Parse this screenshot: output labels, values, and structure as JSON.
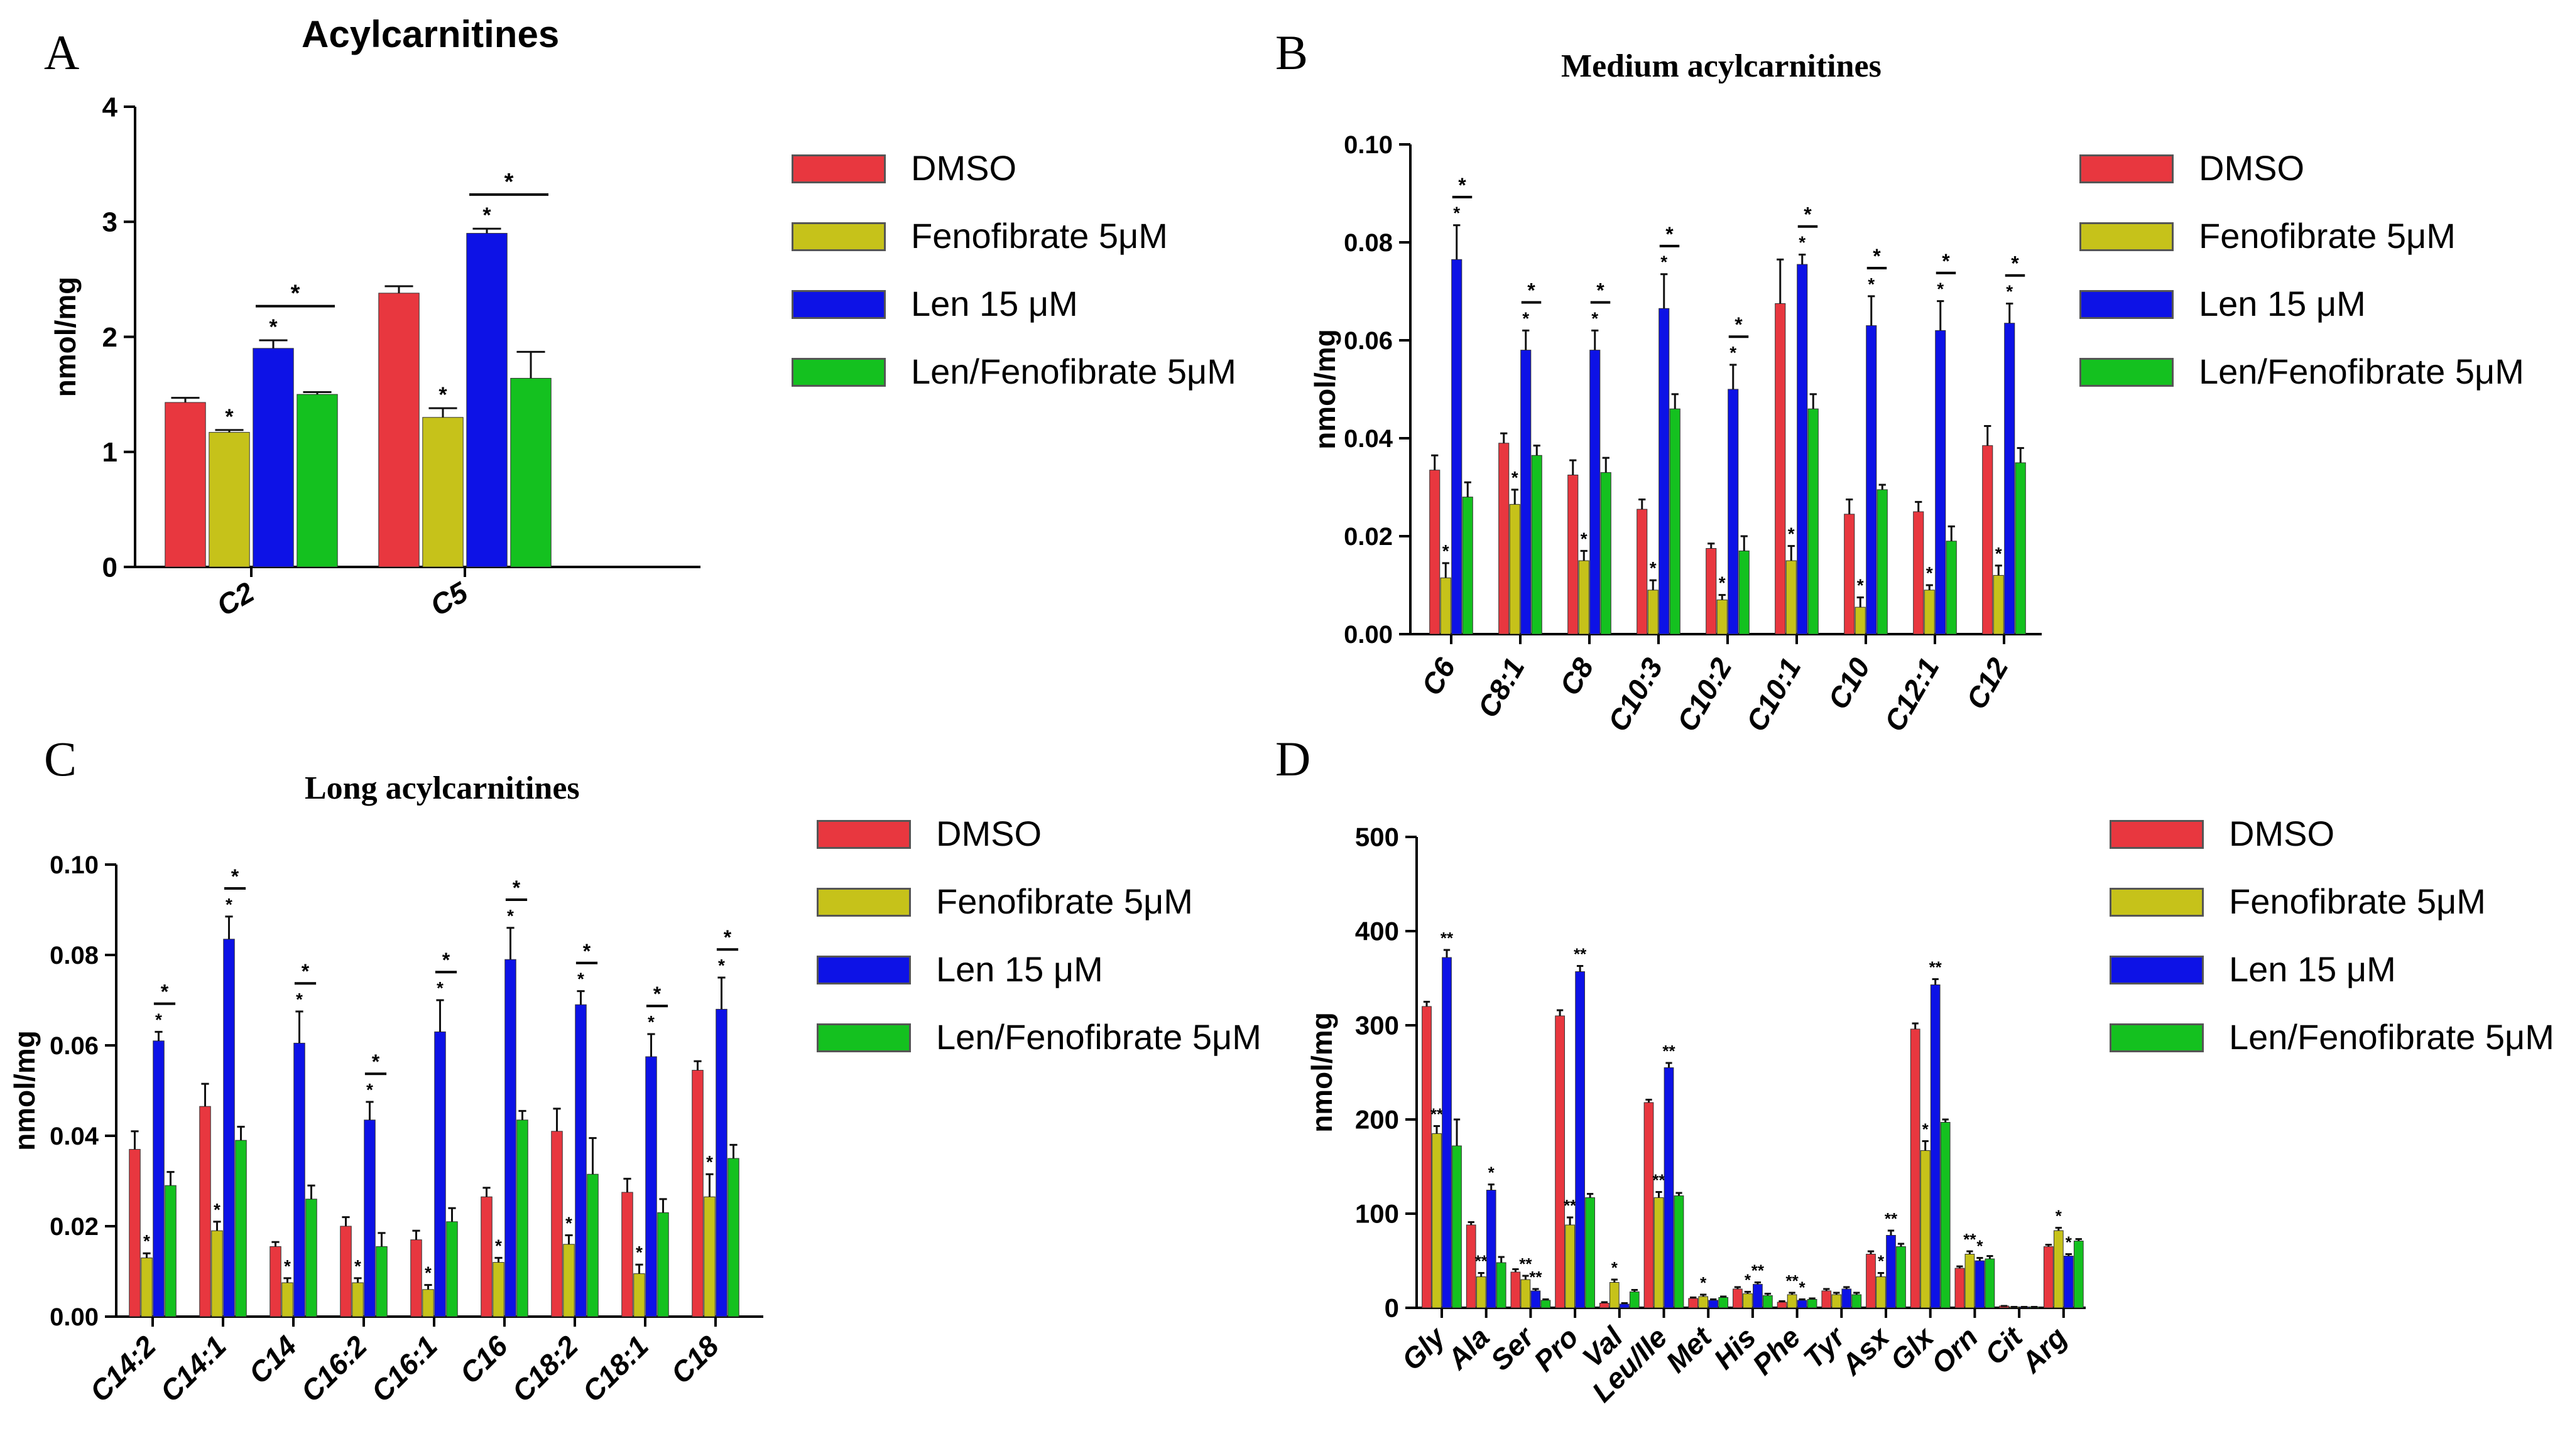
{
  "chart_data": [
    {
      "panel": "A",
      "type": "bar",
      "title": "Acylcarnitines",
      "ylabel": "nmol/mg",
      "xlabel": "",
      "ylim": [
        0,
        4
      ],
      "yticks": [
        "0",
        "1",
        "2",
        "3",
        "4"
      ],
      "categories": [
        "C2",
        "C5"
      ],
      "series": [
        {
          "name": "DMSO",
          "color": "#e8373f",
          "values": [
            1.43,
            2.38
          ],
          "errors": [
            0.04,
            0.06
          ],
          "marks": [
            "",
            ""
          ]
        },
        {
          "name": "Fenofibrate 5μM",
          "color": "#c6c21a",
          "values": [
            1.17,
            1.3
          ],
          "errors": [
            0.02,
            0.08
          ],
          "marks": [
            "*",
            "*"
          ]
        },
        {
          "name": "Len 15 μM",
          "color": "#0d12e6",
          "values": [
            1.9,
            2.9
          ],
          "errors": [
            0.07,
            0.04
          ],
          "marks": [
            "*",
            "*"
          ]
        },
        {
          "name": "Len/Fenofibrate 5μM",
          "color": "#14c11f",
          "values": [
            1.5,
            1.64
          ],
          "errors": [
            0.02,
            0.23
          ],
          "marks": [
            "",
            ""
          ]
        }
      ],
      "brackets": [
        {
          "category": 0,
          "from": 2,
          "to": 3,
          "label": "*"
        },
        {
          "category": 1,
          "from": 2,
          "to": 3,
          "label": "*"
        }
      ]
    },
    {
      "panel": "B",
      "type": "bar",
      "title": "Medium acylcarnitines",
      "ylabel": "nmol/mg",
      "xlabel": "",
      "ylim": [
        0,
        0.1
      ],
      "yticks": [
        "0.00",
        "0.02",
        "0.04",
        "0.06",
        "0.08",
        "0.10"
      ],
      "categories": [
        "C6",
        "C8:1",
        "C8",
        "C10:3",
        "C10:2",
        "C10:1",
        "C10",
        "C12:1",
        "C12"
      ],
      "series": [
        {
          "name": "DMSO",
          "color": "#e8373f",
          "values": [
            0.0335,
            0.039,
            0.0325,
            0.0255,
            0.0175,
            0.0675,
            0.0245,
            0.025,
            0.0385
          ],
          "errors": [
            0.003,
            0.002,
            0.003,
            0.002,
            0.001,
            0.009,
            0.003,
            0.002,
            0.004
          ],
          "marks": [
            "",
            "",
            "",
            "",
            "",
            "",
            "",
            "",
            ""
          ]
        },
        {
          "name": "Fenofibrate 5μM",
          "color": "#c6c21a",
          "values": [
            0.0115,
            0.0265,
            0.015,
            0.009,
            0.007,
            0.015,
            0.0055,
            0.009,
            0.012
          ],
          "errors": [
            0.003,
            0.003,
            0.002,
            0.002,
            0.001,
            0.003,
            0.002,
            0.001,
            0.002
          ],
          "marks": [
            "*",
            "*",
            "*",
            "*",
            "*",
            "*",
            "*",
            "*",
            "*"
          ]
        },
        {
          "name": "Len 15 μM",
          "color": "#0d12e6",
          "values": [
            0.0765,
            0.058,
            0.058,
            0.0665,
            0.05,
            0.0755,
            0.063,
            0.062,
            0.0635
          ],
          "errors": [
            0.007,
            0.004,
            0.004,
            0.007,
            0.005,
            0.002,
            0.006,
            0.006,
            0.004
          ],
          "marks": [
            "*",
            "*",
            "*",
            "*",
            "*",
            "*",
            "*",
            "*",
            "*"
          ]
        },
        {
          "name": "Len/Fenofibrate 5μM",
          "color": "#14c11f",
          "values": [
            0.028,
            0.0365,
            0.033,
            0.046,
            0.017,
            0.046,
            0.0295,
            0.019,
            0.035
          ],
          "errors": [
            0.003,
            0.002,
            0.003,
            0.003,
            0.003,
            0.003,
            0.001,
            0.003,
            0.003
          ],
          "marks": [
            "",
            "",
            "",
            "",
            "",
            "",
            "",
            "",
            ""
          ]
        }
      ],
      "brackets": [
        {
          "category": 0,
          "from": 2,
          "to": 3,
          "label": "*"
        },
        {
          "category": 1,
          "from": 2,
          "to": 3,
          "label": "*"
        },
        {
          "category": 2,
          "from": 2,
          "to": 3,
          "label": "*"
        },
        {
          "category": 3,
          "from": 2,
          "to": 3,
          "label": "*"
        },
        {
          "category": 4,
          "from": 2,
          "to": 3,
          "label": "*"
        },
        {
          "category": 5,
          "from": 2,
          "to": 3,
          "label": "*"
        },
        {
          "category": 6,
          "from": 2,
          "to": 3,
          "label": "*"
        },
        {
          "category": 7,
          "from": 2,
          "to": 3,
          "label": "*"
        },
        {
          "category": 8,
          "from": 2,
          "to": 3,
          "label": "*"
        }
      ]
    },
    {
      "panel": "C",
      "type": "bar",
      "title": "Long acylcarnitines",
      "ylabel": "nmol/mg",
      "xlabel": "",
      "ylim": [
        0,
        0.1
      ],
      "yticks": [
        "0.00",
        "0.02",
        "0.04",
        "0.06",
        "0.08",
        "0.10"
      ],
      "categories": [
        "C14:2",
        "C14:1",
        "C14",
        "C16:2",
        "C16:1",
        "C16",
        "C18:2",
        "C18:1",
        "C18"
      ],
      "series": [
        {
          "name": "DMSO",
          "color": "#e8373f",
          "values": [
            0.037,
            0.0465,
            0.0155,
            0.02,
            0.017,
            0.0265,
            0.041,
            0.0275,
            0.0545
          ],
          "errors": [
            0.004,
            0.005,
            0.001,
            0.002,
            0.002,
            0.002,
            0.005,
            0.003,
            0.002
          ],
          "marks": [
            "",
            "",
            "",
            "",
            "",
            "",
            "",
            "",
            ""
          ]
        },
        {
          "name": "Fenofibrate 5μM",
          "color": "#c6c21a",
          "values": [
            0.013,
            0.019,
            0.0075,
            0.0075,
            0.006,
            0.012,
            0.016,
            0.0095,
            0.0265
          ],
          "errors": [
            0.001,
            0.002,
            0.001,
            0.001,
            0.001,
            0.001,
            0.002,
            0.002,
            0.005
          ],
          "marks": [
            "*",
            "*",
            "*",
            "*",
            "*",
            "*",
            "*",
            "*",
            "*"
          ]
        },
        {
          "name": "Len 15 μM",
          "color": "#0d12e6",
          "values": [
            0.061,
            0.0835,
            0.0605,
            0.0435,
            0.063,
            0.079,
            0.069,
            0.0575,
            0.068
          ],
          "errors": [
            0.002,
            0.005,
            0.007,
            0.004,
            0.007,
            0.007,
            0.003,
            0.005,
            0.007
          ],
          "marks": [
            "*",
            "*",
            "*",
            "*",
            "*",
            "*",
            "*",
            "*",
            "*"
          ]
        },
        {
          "name": "Len/Fenofibrate 5μM",
          "color": "#14c11f",
          "values": [
            0.029,
            0.039,
            0.026,
            0.0155,
            0.021,
            0.0435,
            0.0315,
            0.023,
            0.035
          ],
          "errors": [
            0.003,
            0.003,
            0.003,
            0.003,
            0.003,
            0.002,
            0.008,
            0.003,
            0.003
          ],
          "marks": [
            "",
            "",
            "",
            "",
            "",
            "",
            "",
            "",
            ""
          ]
        }
      ],
      "brackets": [
        {
          "category": 0,
          "from": 2,
          "to": 3,
          "label": "*"
        },
        {
          "category": 1,
          "from": 2,
          "to": 3,
          "label": "*"
        },
        {
          "category": 2,
          "from": 2,
          "to": 3,
          "label": "*"
        },
        {
          "category": 3,
          "from": 2,
          "to": 3,
          "label": "*"
        },
        {
          "category": 4,
          "from": 2,
          "to": 3,
          "label": "*"
        },
        {
          "category": 5,
          "from": 2,
          "to": 3,
          "label": "*"
        },
        {
          "category": 6,
          "from": 2,
          "to": 3,
          "label": "*"
        },
        {
          "category": 7,
          "from": 2,
          "to": 3,
          "label": "*"
        },
        {
          "category": 8,
          "from": 2,
          "to": 3,
          "label": "*"
        }
      ]
    },
    {
      "panel": "D",
      "type": "bar",
      "title": "",
      "ylabel": "nmol/mg",
      "xlabel": "",
      "ylim": [
        0,
        500
      ],
      "yticks": [
        "0",
        "100",
        "200",
        "300",
        "400",
        "500"
      ],
      "categories": [
        "Gly",
        "Ala",
        "Ser",
        "Pro",
        "Val",
        "Leu/Ile",
        "Met",
        "His",
        "Phe",
        "Tyr",
        "Asx",
        "Glx",
        "Orn",
        "Cit",
        "Arg"
      ],
      "series": [
        {
          "name": "DMSO",
          "color": "#e8373f",
          "values": [
            320,
            88,
            38,
            310,
            5,
            218,
            10,
            20,
            6,
            18,
            57,
            296,
            42,
            2,
            65
          ],
          "errors": [
            5,
            3,
            3,
            6,
            1,
            3,
            1,
            2,
            1,
            2,
            3,
            6,
            2,
            0,
            2
          ],
          "marks": [
            "",
            "",
            "",
            "",
            "",
            "",
            "",
            "",
            "",
            "",
            "",
            "",
            "",
            "",
            ""
          ]
        },
        {
          "name": "Fenofibrate 5μM",
          "color": "#c6c21a",
          "values": [
            185,
            33,
            30,
            88,
            27,
            117,
            12,
            15,
            14,
            14,
            33,
            167,
            57,
            1,
            82
          ],
          "errors": [
            8,
            4,
            4,
            8,
            3,
            6,
            2,
            2,
            2,
            2,
            4,
            10,
            3,
            0,
            3
          ],
          "marks": [
            "**",
            "**",
            "**",
            "**",
            "*",
            "**",
            "*",
            "*",
            "**",
            "",
            "*",
            "*",
            "**",
            "",
            "*"
          ]
        },
        {
          "name": "Len 15 μM",
          "color": "#0d12e6",
          "values": [
            372,
            125,
            18,
            357,
            4,
            255,
            8,
            25,
            8,
            20,
            77,
            343,
            50,
            1,
            55
          ],
          "errors": [
            8,
            6,
            2,
            6,
            1,
            5,
            1,
            2,
            1,
            2,
            5,
            6,
            3,
            0,
            2
          ],
          "marks": [
            "**",
            "*",
            "**",
            "**",
            "",
            "**",
            "",
            "**",
            "*",
            "",
            "**",
            "**",
            "*",
            "",
            "*"
          ]
        },
        {
          "name": "Len/Fenofibrate 5μM",
          "color": "#14c11f",
          "values": [
            172,
            48,
            8,
            117,
            17,
            119,
            11,
            13,
            9,
            14,
            65,
            197,
            52,
            1,
            71
          ],
          "errors": [
            28,
            6,
            1,
            4,
            2,
            3,
            1,
            2,
            1,
            2,
            3,
            3,
            3,
            0,
            2
          ],
          "marks": [
            "",
            "",
            "",
            "",
            "",
            "",
            "",
            "",
            "",
            "",
            "",
            "",
            "",
            "",
            ""
          ]
        }
      ],
      "brackets": []
    }
  ]
}
